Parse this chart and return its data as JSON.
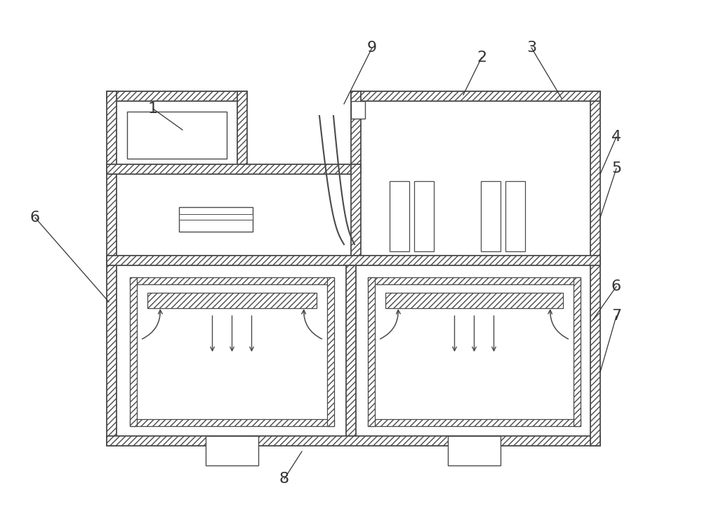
{
  "bg_color": "#ffffff",
  "line_color": "#4a4a4a",
  "fig_width": 10.0,
  "fig_height": 7.25,
  "wall_thickness": 14,
  "inner_wall_thickness": 10
}
